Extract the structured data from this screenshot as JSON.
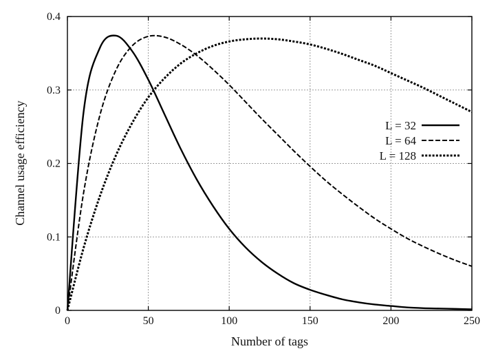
{
  "chart_data": {
    "type": "line",
    "title": "",
    "xlabel": "Number of tags",
    "ylabel": "Channel usage efficiency",
    "xlim": [
      0,
      250
    ],
    "ylim": [
      0,
      0.4
    ],
    "xticks": [
      0,
      50,
      100,
      150,
      200,
      250
    ],
    "yticks": [
      0,
      0.1,
      0.2,
      0.3,
      0.4
    ],
    "xtick_labels": [
      "0",
      "50",
      "100",
      "150",
      "200",
      "250"
    ],
    "ytick_labels": [
      "0",
      "0.1",
      "0.2",
      "0.3",
      "0.4"
    ],
    "grid": true,
    "legend_position": "right",
    "x": [
      0,
      10,
      20,
      30,
      40,
      50,
      60,
      70,
      80,
      90,
      100,
      110,
      120,
      130,
      140,
      150,
      160,
      170,
      180,
      190,
      200,
      210,
      220,
      230,
      240,
      250
    ],
    "series": [
      {
        "name": "L = 32",
        "line_style": "solid",
        "values": [
          0,
          0.27,
          0.357,
          0.374,
          0.353,
          0.314,
          0.267,
          0.22,
          0.178,
          0.142,
          0.111,
          0.086,
          0.066,
          0.05,
          0.037,
          0.028,
          0.021,
          0.015,
          0.011,
          0.008,
          0.006,
          0.004,
          0.003,
          0.0025,
          0.002,
          0.0015
        ]
      },
      {
        "name": "L = 64",
        "line_style": "dashed",
        "values": [
          0,
          0.16,
          0.265,
          0.327,
          0.36,
          0.373,
          0.372,
          0.362,
          0.347,
          0.328,
          0.307,
          0.284,
          0.261,
          0.239,
          0.217,
          0.196,
          0.176,
          0.158,
          0.141,
          0.125,
          0.111,
          0.098,
          0.087,
          0.077,
          0.068,
          0.06
        ]
      },
      {
        "name": "L = 128",
        "line_style": "dotted",
        "values": [
          0,
          0.085,
          0.155,
          0.211,
          0.255,
          0.29,
          0.316,
          0.336,
          0.35,
          0.36,
          0.366,
          0.369,
          0.37,
          0.369,
          0.366,
          0.362,
          0.356,
          0.349,
          0.341,
          0.333,
          0.323,
          0.313,
          0.303,
          0.292,
          0.281,
          0.27
        ]
      }
    ]
  }
}
